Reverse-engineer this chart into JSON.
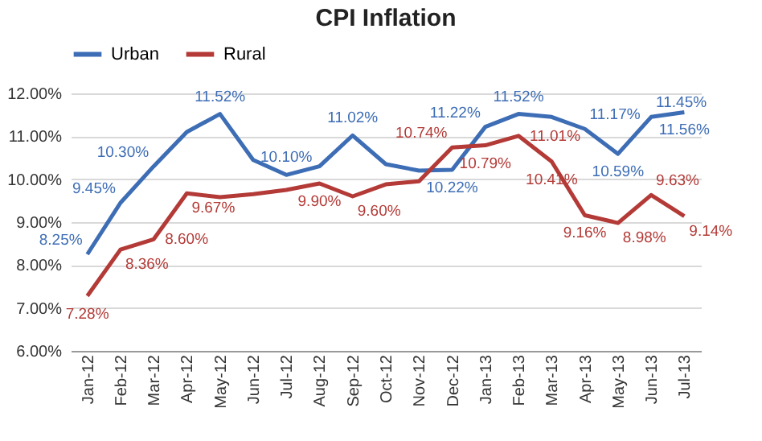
{
  "chart_data": {
    "type": "line",
    "title": "CPI Inflation",
    "categories": [
      "Jan-12",
      "Feb-12",
      "Mar-12",
      "Apr-12",
      "May-12",
      "Jun-12",
      "Jul-12",
      "Aug-12",
      "Sep-12",
      "Oct-12",
      "Nov-12",
      "Dec-12",
      "Jan-13",
      "Feb-13",
      "Mar-13",
      "Apr-13",
      "May-13",
      "Jun-13",
      "Jul-13"
    ],
    "series": [
      {
        "name": "Urban",
        "color": "#3d6db5",
        "values": [
          8.25,
          9.45,
          10.3,
          11.1,
          11.52,
          10.45,
          10.1,
          10.3,
          11.02,
          10.35,
          10.2,
          10.22,
          11.22,
          11.52,
          11.45,
          11.17,
          10.59,
          11.45,
          11.56
        ],
        "value_labels": [
          "8.25%",
          "9.45%",
          "10.30%",
          null,
          "11.52%",
          null,
          "10.10%",
          null,
          "11.02%",
          null,
          null,
          "10.22%",
          "11.22%",
          "11.52%",
          null,
          "11.17%",
          "10.59%",
          "11.45%",
          "11.56%"
        ]
      },
      {
        "name": "Rural",
        "color": "#b33a36",
        "values": [
          7.28,
          8.36,
          8.6,
          9.67,
          9.58,
          9.65,
          9.75,
          9.9,
          9.6,
          9.88,
          9.95,
          10.74,
          10.79,
          11.01,
          10.41,
          9.16,
          8.98,
          9.63,
          9.14
        ],
        "value_labels": [
          "7.28%",
          "8.36%",
          "8.60%",
          "9.67%",
          null,
          null,
          null,
          "9.90%",
          "9.60%",
          null,
          null,
          "10.74%",
          "10.79%",
          "11.01%",
          "10.41%",
          "9.16%",
          "8.98%",
          "9.63%",
          "9.14%"
        ]
      }
    ],
    "ylim": [
      6,
      12
    ],
    "yticks": [
      {
        "value": 6,
        "label": "6.00%"
      },
      {
        "value": 7,
        "label": "7.00%"
      },
      {
        "value": 8,
        "label": "8.00%"
      },
      {
        "value": 9,
        "label": "9.00%"
      },
      {
        "value": 10,
        "label": "10.00%"
      },
      {
        "value": 11,
        "label": "11.00%"
      },
      {
        "value": 12,
        "label": "12.00%"
      }
    ],
    "grid": "y",
    "legend": "top"
  }
}
